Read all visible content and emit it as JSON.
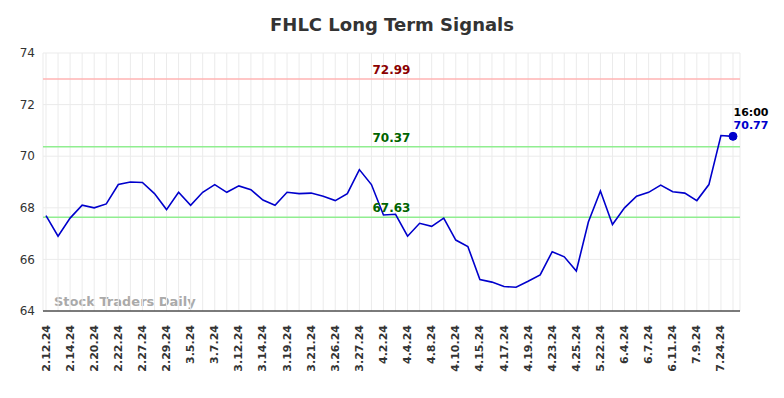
{
  "chart_data": {
    "type": "line",
    "title": "FHLC Long Term Signals",
    "watermark": "Stock Traders Daily",
    "categories": [
      "2.12.24",
      null,
      "2.14.24",
      null,
      "2.20.24",
      null,
      "2.22.24",
      null,
      "2.27.24",
      null,
      "2.29.24",
      null,
      "3.5.24",
      null,
      "3.7.24",
      null,
      "3.12.24",
      null,
      "3.14.24",
      null,
      "3.19.24",
      null,
      "3.21.24",
      null,
      "3.26.24",
      null,
      "3.27.24",
      null,
      "4.2.24",
      null,
      "4.4.24",
      null,
      "4.8.24",
      null,
      "4.10.24",
      null,
      "4.15.24",
      null,
      "4.17.24",
      null,
      "4.19.24",
      null,
      "4.23.24",
      null,
      "4.25.24",
      null,
      "5.22.24",
      null,
      "6.4.24",
      null,
      "6.7.24",
      null,
      "6.11.24",
      null,
      "7.9.24",
      null,
      "7.24.24",
      null
    ],
    "values": [
      67.7,
      66.9,
      67.6,
      68.1,
      68.0,
      68.15,
      68.9,
      69.0,
      68.98,
      68.55,
      67.93,
      68.6,
      68.1,
      68.6,
      68.9,
      68.6,
      68.85,
      68.7,
      68.3,
      68.1,
      68.6,
      68.55,
      68.57,
      68.45,
      68.28,
      68.55,
      69.48,
      68.9,
      67.72,
      67.75,
      66.9,
      67.4,
      67.28,
      67.6,
      66.75,
      66.5,
      65.22,
      65.12,
      64.95,
      64.92,
      65.15,
      65.4,
      66.3,
      66.1,
      65.55,
      67.45,
      68.65,
      67.35,
      68.0,
      68.45,
      68.6,
      68.88,
      68.62,
      68.57,
      68.28,
      68.9,
      70.8,
      70.77
    ],
    "color": "#0000cc",
    "ylim": [
      64,
      74
    ],
    "yticks": [
      64,
      66,
      68,
      70,
      72,
      74
    ],
    "grid": true,
    "levels": [
      {
        "value": 72.99,
        "color": "#ffb3b3",
        "label_color": "#8b0000"
      },
      {
        "value": 70.37,
        "color": "#90ee90",
        "label_color": "#006400"
      },
      {
        "value": 67.63,
        "color": "#90ee90",
        "label_color": "#006400"
      }
    ],
    "last_point": {
      "time": "16:00",
      "value": 70.77
    }
  }
}
